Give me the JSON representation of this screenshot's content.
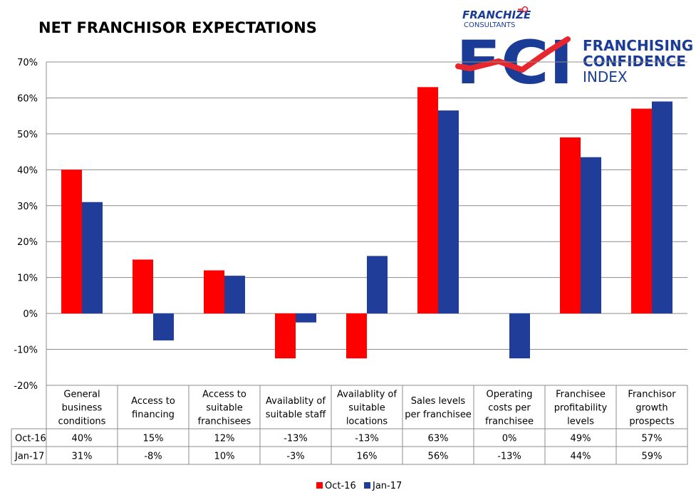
{
  "chart_data": {
    "type": "bar",
    "title": "NET FRANCHISOR EXPECTATIONS",
    "categories": [
      [
        "General",
        "business",
        "conditions"
      ],
      [
        "Access to",
        "financing"
      ],
      [
        "Access to",
        "suitable",
        "franchisees"
      ],
      [
        "Availablity of",
        "suitable staff"
      ],
      [
        "Availablity of",
        "suitable",
        "locations"
      ],
      [
        "Sales levels",
        "per franchisee"
      ],
      [
        "Operating",
        "costs per",
        "franchisee"
      ],
      [
        "Franchisee",
        "profitability",
        "levels"
      ],
      [
        "Franchisor",
        "growth",
        "prospects"
      ]
    ],
    "series": [
      {
        "name": "Oct-16",
        "color": "#ff0000",
        "values": [
          40,
          15,
          12,
          -12.5,
          -12.5,
          63,
          0,
          49,
          57
        ],
        "labels": [
          "40%",
          "15%",
          "12%",
          "-13%",
          "-13%",
          "63%",
          "0%",
          "49%",
          "57%"
        ]
      },
      {
        "name": "Jan-17",
        "color": "#1f3d99",
        "values": [
          31,
          -7.5,
          10.5,
          -2.5,
          16,
          56.5,
          -12.5,
          43.5,
          59
        ],
        "labels": [
          "31%",
          "-8%",
          "10%",
          "-3%",
          "16%",
          "56%",
          "-13%",
          "44%",
          "59%"
        ]
      }
    ],
    "yticks": [
      "70%",
      "60%",
      "50%",
      "40%",
      "30%",
      "20%",
      "10%",
      "0%",
      "-10%",
      "-20%"
    ],
    "ylim": [
      -20,
      70
    ],
    "grid": true,
    "legend": "bottom",
    "table": true
  },
  "logo": {
    "top_line1": "FRANCHIZE",
    "top_line2": "CONSULTANTS",
    "letters": "FCI",
    "line1": "FRANCHISING",
    "line2": "CONFIDENCE",
    "line3": "INDEX",
    "brand_red": "#e8262d",
    "brand_blue": "#1b3c96"
  }
}
